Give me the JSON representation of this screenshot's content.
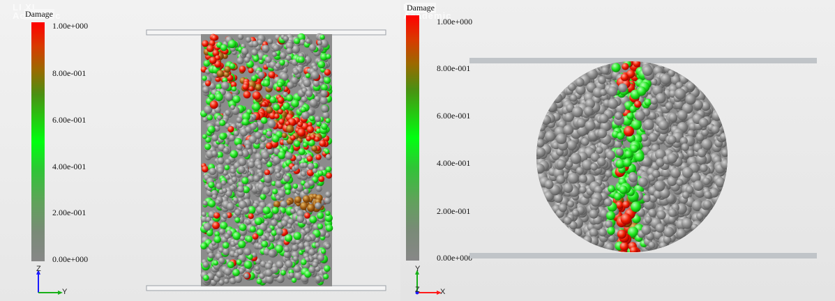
{
  "watermark": {
    "line1": "LI XI",
    "line2": "Academic"
  },
  "left_view": {
    "legend": {
      "title": "Damage",
      "ticks": [
        "1.00e+000",
        "8.00e-001",
        "6.00e-001",
        "4.00e-001",
        "2.00e-001",
        "0.00e+000"
      ]
    },
    "axes": {
      "vertical": "Z",
      "horizontal": "Y"
    }
  },
  "right_view": {
    "legend": {
      "title": "Damage",
      "ticks": [
        "1.00e+000",
        "8.00e-001",
        "6.00e-001",
        "4.00e-001",
        "2.00e-001",
        "0.00e+000"
      ]
    },
    "axes": {
      "vertical": "Y",
      "depth": "Z",
      "horizontal": "X"
    }
  },
  "colors": {
    "damage_high": "#ff0000",
    "damage_mid": "#00ff10",
    "damage_low": "#878787",
    "platen": "#c0c4c8"
  }
}
